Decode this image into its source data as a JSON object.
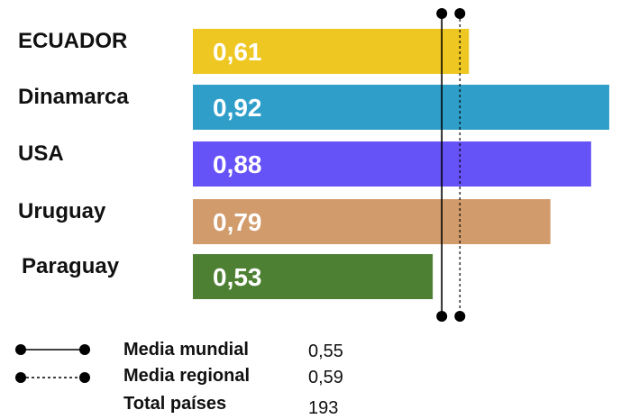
{
  "chart_data": {
    "type": "bar",
    "orientation": "horizontal",
    "categories": [
      "ECUADOR",
      "Dinamarca",
      "USA",
      "Uruguay",
      "Paraguay"
    ],
    "values": [
      0.61,
      0.92,
      0.88,
      0.79,
      0.53
    ],
    "value_labels": [
      "0,61",
      "0,92",
      "0,88",
      "0,79",
      "0,53"
    ],
    "colors": [
      "#eec722",
      "#2f9fca",
      "#6653f7",
      "#d19b6b",
      "#4e8034"
    ],
    "xlim": [
      0,
      0.94
    ],
    "reference_lines": [
      {
        "name": "Media mundial",
        "value": 0.55,
        "style": "solid"
      },
      {
        "name": "Media regional",
        "value": 0.59,
        "style": "dashed"
      }
    ]
  },
  "legend": {
    "items": [
      {
        "name": "Media mundial",
        "value": "0,55",
        "symbol": "solid"
      },
      {
        "name": "Media regional",
        "value": "0,59",
        "symbol": "dashed"
      },
      {
        "name": "Total países",
        "value": "193",
        "symbol": "none"
      }
    ]
  }
}
